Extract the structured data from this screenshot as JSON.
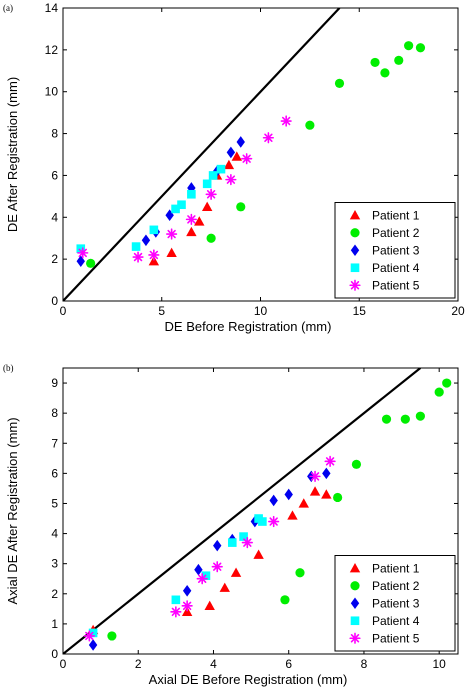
{
  "chart_data": [
    {
      "panel_label": "(a)",
      "type": "scatter",
      "xlabel": "DE Before Registration (mm)",
      "ylabel": "DE After Registration (mm)",
      "xlim": [
        0,
        20
      ],
      "ylim": [
        0,
        14
      ],
      "xticks": [
        "0",
        "5",
        "10",
        "15",
        "20"
      ],
      "yticks": [
        "0",
        "2",
        "4",
        "6",
        "8",
        "10",
        "12",
        "14"
      ],
      "identity_line": true,
      "legend_position": "bottom-right",
      "series": [
        {
          "name": "Patient 1",
          "marker": "triangle",
          "color": "#ff0000",
          "points": [
            [
              4.6,
              1.9
            ],
            [
              5.5,
              2.3
            ],
            [
              6.5,
              3.3
            ],
            [
              6.9,
              3.8
            ],
            [
              7.3,
              4.5
            ],
            [
              7.8,
              6.0
            ],
            [
              8.4,
              6.5
            ],
            [
              8.8,
              6.9
            ]
          ]
        },
        {
          "name": "Patient 2",
          "marker": "circle",
          "color": "#00ee00",
          "points": [
            [
              1.4,
              1.8
            ],
            [
              7.5,
              3.0
            ],
            [
              9.0,
              4.5
            ],
            [
              12.5,
              8.4
            ],
            [
              14.0,
              10.4
            ],
            [
              15.8,
              11.4
            ],
            [
              16.3,
              10.9
            ],
            [
              17.0,
              11.5
            ],
            [
              17.5,
              12.2
            ],
            [
              18.1,
              12.1
            ]
          ]
        },
        {
          "name": "Patient 3",
          "marker": "diamond",
          "color": "#0000ee",
          "points": [
            [
              0.9,
              1.9
            ],
            [
              4.2,
              2.9
            ],
            [
              4.7,
              3.3
            ],
            [
              5.4,
              4.1
            ],
            [
              6.5,
              5.4
            ],
            [
              7.8,
              6.2
            ],
            [
              8.5,
              7.1
            ],
            [
              9.0,
              7.6
            ]
          ]
        },
        {
          "name": "Patient 4",
          "marker": "square",
          "color": "#00ffff",
          "points": [
            [
              0.9,
              2.5
            ],
            [
              3.7,
              2.6
            ],
            [
              4.6,
              3.4
            ],
            [
              5.7,
              4.4
            ],
            [
              6.0,
              4.6
            ],
            [
              6.5,
              5.1
            ],
            [
              7.3,
              5.6
            ],
            [
              7.6,
              6.0
            ],
            [
              8.0,
              6.3
            ]
          ]
        },
        {
          "name": "Patient 5",
          "marker": "star",
          "color": "#ff00ff",
          "points": [
            [
              1.0,
              2.3
            ],
            [
              3.8,
              2.1
            ],
            [
              4.6,
              2.2
            ],
            [
              5.5,
              3.2
            ],
            [
              6.5,
              3.9
            ],
            [
              7.5,
              5.1
            ],
            [
              8.5,
              5.8
            ],
            [
              9.3,
              6.8
            ],
            [
              10.4,
              7.8
            ],
            [
              11.3,
              8.6
            ]
          ]
        }
      ]
    },
    {
      "panel_label": "(b)",
      "type": "scatter",
      "xlabel": "Axial DE Before Registration (mm)",
      "ylabel": "Axial DE After Registration (mm)",
      "xlim": [
        0,
        10.5
      ],
      "ylim": [
        0,
        9.5
      ],
      "xticks": [
        "0",
        "2",
        "4",
        "6",
        "8",
        "10"
      ],
      "yticks": [
        "0",
        "1",
        "2",
        "3",
        "4",
        "5",
        "6",
        "7",
        "8",
        "9"
      ],
      "identity_line": true,
      "legend_position": "bottom-right",
      "series": [
        {
          "name": "Patient 1",
          "marker": "triangle",
          "color": "#ff0000",
          "points": [
            [
              0.8,
              0.8
            ],
            [
              3.3,
              1.4
            ],
            [
              3.9,
              1.6
            ],
            [
              4.3,
              2.2
            ],
            [
              4.6,
              2.7
            ],
            [
              5.2,
              3.3
            ],
            [
              6.1,
              4.6
            ],
            [
              6.4,
              5.0
            ],
            [
              6.7,
              5.4
            ],
            [
              7.0,
              5.3
            ]
          ]
        },
        {
          "name": "Patient 2",
          "marker": "circle",
          "color": "#00ee00",
          "points": [
            [
              1.3,
              0.6
            ],
            [
              5.9,
              1.8
            ],
            [
              6.3,
              2.7
            ],
            [
              7.3,
              5.2
            ],
            [
              7.8,
              6.3
            ],
            [
              8.6,
              7.8
            ],
            [
              9.1,
              7.8
            ],
            [
              9.5,
              7.9
            ],
            [
              10.0,
              8.7
            ],
            [
              10.2,
              9.0
            ]
          ]
        },
        {
          "name": "Patient 3",
          "marker": "diamond",
          "color": "#0000ee",
          "points": [
            [
              0.8,
              0.3
            ],
            [
              3.3,
              2.1
            ],
            [
              3.6,
              2.8
            ],
            [
              4.1,
              3.6
            ],
            [
              4.5,
              3.8
            ],
            [
              5.1,
              4.4
            ],
            [
              5.6,
              5.1
            ],
            [
              6.0,
              5.3
            ],
            [
              6.6,
              5.9
            ],
            [
              7.0,
              6.0
            ]
          ]
        },
        {
          "name": "Patient 4",
          "marker": "square",
          "color": "#00ffff",
          "points": [
            [
              0.8,
              0.7
            ],
            [
              3.0,
              1.8
            ],
            [
              3.8,
              2.6
            ],
            [
              4.5,
              3.7
            ],
            [
              4.8,
              3.9
            ],
            [
              5.2,
              4.5
            ],
            [
              5.3,
              4.4
            ]
          ]
        },
        {
          "name": "Patient 5",
          "marker": "star",
          "color": "#ff00ff",
          "points": [
            [
              0.7,
              0.6
            ],
            [
              3.0,
              1.4
            ],
            [
              3.3,
              1.6
            ],
            [
              3.7,
              2.5
            ],
            [
              4.1,
              2.9
            ],
            [
              4.9,
              3.7
            ],
            [
              5.6,
              4.4
            ],
            [
              6.7,
              5.9
            ],
            [
              7.1,
              6.4
            ]
          ]
        }
      ]
    }
  ]
}
